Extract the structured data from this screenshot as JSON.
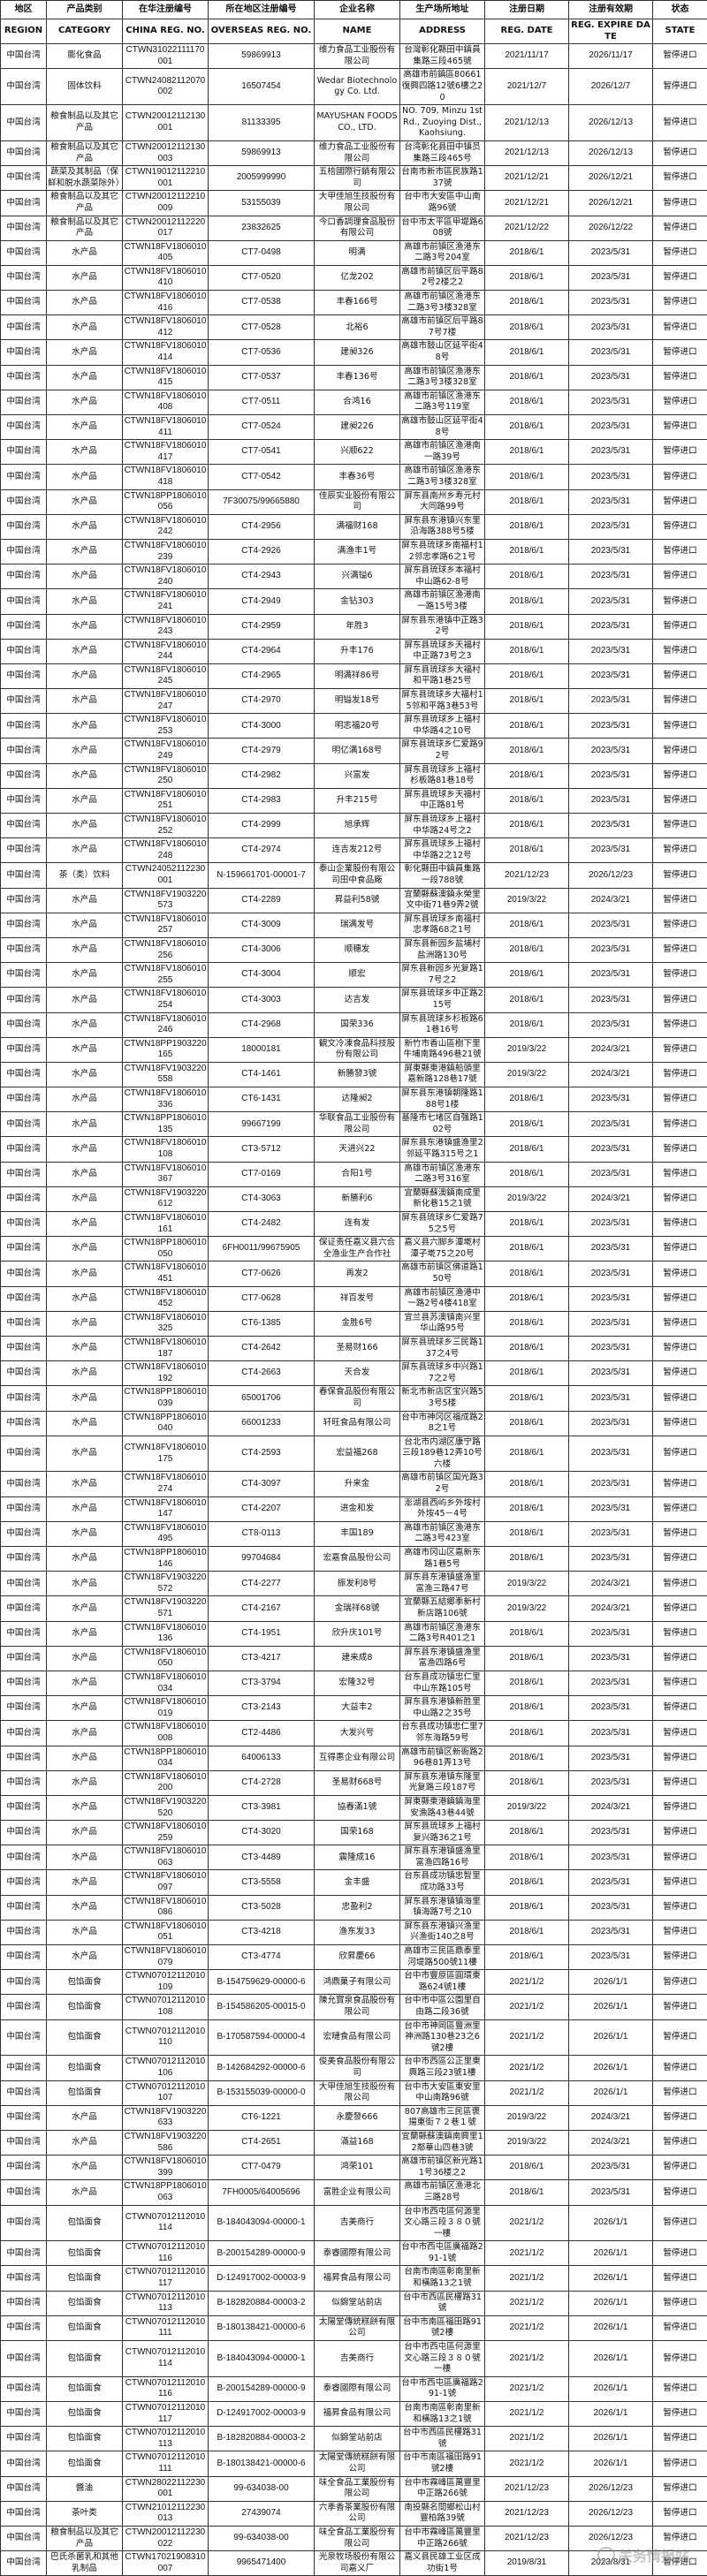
{
  "headers_cn": [
    "地区",
    "产品类别",
    "在华注册编号",
    "所在地区注册编号",
    "企业名称",
    "生产场所地址",
    "注册日期",
    "注册有效期",
    "状态"
  ],
  "headers_en": [
    "REGION",
    "CATEGORY",
    "CHINA REG. NO.",
    "OVERSEAS REG. NO.",
    "NAME",
    "ADDRESS",
    "REG. DATE",
    "REG. EXPIRE DATE",
    "STATE"
  ],
  "watermark": "关务情报站",
  "rows": [
    [
      "中国台湾",
      "膨化食品",
      "CTWN31022111170001",
      "59869913",
      "维力食品工业股份有限公司",
      "台灣彰化縣田中鎮員集路三段465號",
      "2021/11/17",
      "2026/11/17",
      "暂停进口"
    ],
    [
      "中国台湾",
      "固体饮料",
      "CTWN24082112070002",
      "16507454",
      "Wedar Biotechnology Co. Ltd.",
      "高雄市前鎮區80661復興四路12號6樓之20",
      "2021/12/7",
      "2026/12/7",
      "暂停进口"
    ],
    [
      "中国台湾",
      "粮食制品以及其它产品",
      "CTWN20012112130001",
      "81133395",
      "MAYUSHAN FOODS CO., LTD.",
      "NO. 709, Minzu 1st Rd., Zuoying Dist., Kaohsiung.",
      "2021/12/13",
      "2026/12/13",
      "暂停进口"
    ],
    [
      "中国台湾",
      "粮食制品以及其它产品",
      "CTWN20012112130003",
      "59869913",
      "维力食品工业股份有限公司",
      "台湾彰化县田中镇员集路三段465号",
      "2021/12/13",
      "2026/12/13",
      "暂停进口"
    ],
    [
      "中国台湾",
      "蔬菜及其制品（保鲜和脱水蔬菜除外）",
      "CTWN19012112210001",
      "2005999990",
      "五棓國際行銷有限公司",
      "台南市新市區民族路137號",
      "2021/12/21",
      "2026/12/21",
      "暂停进口"
    ],
    [
      "中国台湾",
      "粮食制品以及其它产品",
      "CTWN20012112210009",
      "53155039",
      "大甲佳旭生技股份有限公司",
      "台中市大安區中山南路96號",
      "2021/12/21",
      "2026/12/21",
      "暂停进口"
    ],
    [
      "中国台湾",
      "粮食制品以及其它产品",
      "CTWN20012112220017",
      "23832625",
      "今口香調理食品股份有限公司",
      "台中市太平區甲堤路608號",
      "2021/12/22",
      "2026/12/22",
      "暂停进口"
    ],
    [
      "中国台湾",
      "水产品",
      "CTWN18FV1806010405",
      "CT7-0498",
      "明满",
      "高雄市前镇区渔港东二路3号204室",
      "2018/6/1",
      "2023/5/31",
      "暂停进口"
    ],
    [
      "中国台湾",
      "水产品",
      "CTWN18FV1806010410",
      "CT7-0520",
      "亿龙202",
      "高雄市前镇区后平路82号2楼之2",
      "2018/6/1",
      "2023/5/31",
      "暂停进口"
    ],
    [
      "中国台湾",
      "水产品",
      "CTWN18FV1806010416",
      "CT7-0538",
      "丰春166号",
      "高雄市前镇区渔港东二路3号3楼328室",
      "2018/6/1",
      "2023/5/31",
      "暂停进口"
    ],
    [
      "中国台湾",
      "水产品",
      "CTWN18FV1806010412",
      "CT7-0528",
      "北裕6",
      "高雄市前镇区后平路87号7楼",
      "2018/6/1",
      "2023/5/31",
      "暂停进口"
    ],
    [
      "中国台湾",
      "水产品",
      "CTWN18FV1806010414",
      "CT7-0536",
      "建昶326",
      "高雄市鼓山区延平街48号",
      "2018/6/1",
      "2023/5/31",
      "暂停进口"
    ],
    [
      "中国台湾",
      "水产品",
      "CTWN18FV1806010415",
      "CT7-0537",
      "丰春136号",
      "高雄市前镇区渔港东二路3号3楼328室",
      "2018/6/1",
      "2023/5/31",
      "暂停进口"
    ],
    [
      "中国台湾",
      "水产品",
      "CTWN18FV1806010408",
      "CT7-0511",
      "合鸿16",
      "高雄市前镇区渔港东二路3号119室",
      "2018/6/1",
      "2023/5/31",
      "暂停进口"
    ],
    [
      "中国台湾",
      "水产品",
      "CTWN18FV1806010411",
      "CT7-0524",
      "建昶226",
      "高雄市鼓山区延平街48号",
      "2018/6/1",
      "2023/5/31",
      "暂停进口"
    ],
    [
      "中国台湾",
      "水产品",
      "CTWN18FV1806010417",
      "CT7-0541",
      "兴顺622",
      "高雄市前镇区渔港南一路39号",
      "2018/6/1",
      "2023/5/31",
      "暂停进口"
    ],
    [
      "中国台湾",
      "水产品",
      "CTWN18FV1806010418",
      "CT7-0542",
      "丰春36号",
      "高雄市前镇区渔港东二路3号3楼328室",
      "2018/6/1",
      "2023/5/31",
      "暂停进口"
    ],
    [
      "中国台湾",
      "水产品",
      "CTWN18PP1806010056",
      "7F30075/99665880",
      "佳辰实业股份有限公司",
      "屏东县南州乡寿元村大同路99号",
      "2018/6/1",
      "2023/5/31",
      "暂停进口"
    ],
    [
      "中国台湾",
      "水产品",
      "CTWN18FV1806010242",
      "CT4-2956",
      "满福财168",
      "屏东县东港镇兴东里沿海路388号5楼",
      "2018/6/1",
      "2023/5/31",
      "暂停进口"
    ],
    [
      "中国台湾",
      "水产品",
      "CTWN18FV1806010239",
      "CT4-2926",
      "满渔丰1号",
      "屏东县琉球乡南福村12邻忠孝路6之1号",
      "2018/6/1",
      "2023/5/31",
      "暂停进口"
    ],
    [
      "中国台湾",
      "水产品",
      "CTWN18FV1806010240",
      "CT4-2943",
      "兴满镒6",
      "屏东县琉球乡本福村中山路62-8号",
      "2018/6/1",
      "2023/5/31",
      "暂停进口"
    ],
    [
      "中国台湾",
      "水产品",
      "CTWN18FV1806010241",
      "CT4-2949",
      "金钻303",
      "高雄市前镇区渔港南一路15号3楼",
      "2018/6/1",
      "2023/5/31",
      "暂停进口"
    ],
    [
      "中国台湾",
      "水产品",
      "CTWN18FV1806010243",
      "CT4-2959",
      "年胜3",
      "屏东县东港镇中正路32号",
      "2018/6/1",
      "2023/5/31",
      "暂停进口"
    ],
    [
      "中国台湾",
      "水产品",
      "CTWN18FV1806010244",
      "CT4-2964",
      "升丰176",
      "屏东县琉球乡天福村中正路73号之3",
      "2018/6/1",
      "2023/5/31",
      "暂停进口"
    ],
    [
      "中国台湾",
      "水产品",
      "CTWN18FV1806010245",
      "CT4-2965",
      "明满祥86号",
      "屏东县琉球乡大福村和平路1巷25号",
      "2018/6/1",
      "2023/5/31",
      "暂停进口"
    ],
    [
      "中国台湾",
      "水产品",
      "CTWN18FV1806010247",
      "CT4-2970",
      "明镒发18号",
      "屏东县琉球乡大福村15邻和平路3巷53号",
      "2018/6/1",
      "2023/5/31",
      "暂停进口"
    ],
    [
      "中国台湾",
      "水产品",
      "CTWN18FV1806010253",
      "CT4-3000",
      "明志福20号",
      "屏东县琉球乡上福村中华路4之10号",
      "2018/6/1",
      "2023/5/31",
      "暂停进口"
    ],
    [
      "中国台湾",
      "水产品",
      "CTWN18FV1806010249",
      "CT4-2979",
      "明亿满168号",
      "屏东县琉球乡仁爱路92号",
      "2018/6/1",
      "2023/5/31",
      "暂停进口"
    ],
    [
      "中国台湾",
      "水产品",
      "CTWN18FV1806010250",
      "CT4-2982",
      "兴富发",
      "屏东县琉球乡上福村杉板路81巷18号",
      "2018/6/1",
      "2023/5/31",
      "暂停进口"
    ],
    [
      "中国台湾",
      "水产品",
      "CTWN18FV1806010251",
      "CT4-2983",
      "升丰215号",
      "屏东县琉球乡天福村中正路81号",
      "2018/6/1",
      "2023/5/31",
      "暂停进口"
    ],
    [
      "中国台湾",
      "水产品",
      "CTWN18FV1806010252",
      "CT4-2999",
      "旭承辉",
      "屏东县琉球乡上福村中华路24号之2",
      "2018/6/1",
      "2023/5/31",
      "暂停进口"
    ],
    [
      "中国台湾",
      "水产品",
      "CTWN18FV1806010248",
      "CT4-2974",
      "连吉发212号",
      "屏东县琉球乡上福村中华路2之12号",
      "2018/6/1",
      "2023/5/31",
      "暂停进口"
    ],
    [
      "中国台湾",
      "茶（类）饮料",
      "CTWN24052112230001",
      "N-159661701-00001-7",
      "泰山企業股份有限公司田中食品廠",
      "彰化縣田中鎮員集路一段788號",
      "2021/12/23",
      "2026/12/23",
      "暂停进口"
    ],
    [
      "中国台湾",
      "水产品",
      "CTWN18FV1903220573",
      "CT4-2289",
      "昇益利58號",
      "宜蘭縣蘇澳鎮永榮里文中街71巷9弄2號",
      "2019/3/22",
      "2024/3/21",
      "暂停进口"
    ],
    [
      "中国台湾",
      "水产品",
      "CTWN18FV1806010257",
      "CT4-3009",
      "瑞满发号",
      "屏东县琉球乡南福村忠孝路68之1号",
      "2018/6/1",
      "2023/5/31",
      "暂停进口"
    ],
    [
      "中国台湾",
      "水产品",
      "CTWN18FV1806010256",
      "CT4-3006",
      "顺穗发",
      "屏东县新园乡盐埔村盐洲路130号",
      "2018/6/1",
      "2023/5/31",
      "暂停进口"
    ],
    [
      "中国台湾",
      "水产品",
      "CTWN18FV1806010255",
      "CT4-3004",
      "顺宏",
      "屏东县新园乡光复路17号之2",
      "2018/6/1",
      "2023/5/31",
      "暂停进口"
    ],
    [
      "中国台湾",
      "水产品",
      "CTWN18FV1806010254",
      "CT4-3003",
      "达吉发",
      "屏东县琉球乡中正路215号",
      "2018/6/1",
      "2023/5/31",
      "暂停进口"
    ],
    [
      "中国台湾",
      "水产品",
      "CTWN18FV1806010246",
      "CT4-2968",
      "国荣336",
      "屏东县琉球乡杉板路61巷16号",
      "2018/6/1",
      "2023/5/31",
      "暂停进口"
    ],
    [
      "中国台湾",
      "水产品",
      "CTWN18PP1903220165",
      "18000181",
      "観文冷凍食品科技股份有限公司",
      "新竹市香山區樹下里牛埔南路496巷21號",
      "2019/3/22",
      "2024/3/21",
      "暂停进口"
    ],
    [
      "中国台湾",
      "水产品",
      "CTWN18FV1903220558",
      "CT4-1461",
      "新勝發3號",
      "屏東縣東港鎮船頭里嘉新路128巷17號",
      "2019/3/22",
      "2024/3/21",
      "暂停进口"
    ],
    [
      "中国台湾",
      "水产品",
      "CTWN18FV1806010336",
      "CT6-1431",
      "达隆昶2",
      "屏东县东港镇朝隆路188号1楼",
      "2018/6/1",
      "2023/5/31",
      "暂停进口"
    ],
    [
      "中国台湾",
      "水产品",
      "CTWN18PP1806010135",
      "99667199",
      "华联食品工业股份有限公司",
      "基隆市七堵区自强路102号",
      "2018/6/1",
      "2023/5/31",
      "暂停进口"
    ],
    [
      "中国台湾",
      "水产品",
      "CTWN18FV1806010108",
      "CT3-5712",
      "天进兴22",
      "屏东县东港镇盛渔里2邻延平路315号之1",
      "2018/6/1",
      "2023/5/31",
      "暂停进口"
    ],
    [
      "中国台湾",
      "水产品",
      "CTWN18FV1806010367",
      "CT7-0169",
      "合阳1号",
      "高雄市前镇区渔港东二路3号316室",
      "2018/6/1",
      "2023/5/31",
      "暂停进口"
    ],
    [
      "中国台湾",
      "水产品",
      "CTWN18FV1903220612",
      "CT4-3063",
      "新勝利6",
      "宜蘭縣蘇澳鎮南成里新化巷15之1號",
      "2019/3/22",
      "2024/3/21",
      "暂停进口"
    ],
    [
      "中国台湾",
      "水产品",
      "CTWN18FV1806010161",
      "CT4-2482",
      "连有发",
      "屏东县琉球乡仁爱路75之5号",
      "2018/6/1",
      "2023/5/31",
      "暂停进口"
    ],
    [
      "中国台湾",
      "水产品",
      "CTWN18PP1806010050",
      "6FH0011/99675905",
      "保证责任嘉义县六合全渔业生产合作社",
      "嘉义县六脚乡潭墘村潭子墘75之20号",
      "2018/6/1",
      "2023/5/31",
      "暂停进口"
    ],
    [
      "中国台湾",
      "水产品",
      "CTWN18FV1806010451",
      "CT7-0626",
      "再发2",
      "高雄市前镇区佛道路150号",
      "2018/6/1",
      "2023/5/31",
      "暂停进口"
    ],
    [
      "中国台湾",
      "水产品",
      "CTWN18FV1806010452",
      "CT7-0628",
      "祥百发号",
      "高雄市前镇区渔港中一路2号4楼418室",
      "2018/6/1",
      "2023/5/31",
      "暂停进口"
    ],
    [
      "中国台湾",
      "水产品",
      "CTWN18FV1806010325",
      "CT6-1385",
      "金胜6号",
      "宜兰县苏澳镇南兴里华山路95号",
      "2018/6/1",
      "2023/5/31",
      "暂停进口"
    ],
    [
      "中国台湾",
      "水产品",
      "CTWN18FV1806010187",
      "CT4-2642",
      "圣易财166",
      "屏东县琉球乡三民路137之4号",
      "2018/6/1",
      "2023/5/31",
      "暂停进口"
    ],
    [
      "中国台湾",
      "水产品",
      "CTWN18FV1806010192",
      "CT4-2663",
      "天合发",
      "屏东县琉球乡中兴路17之2号",
      "2018/6/1",
      "2023/5/31",
      "暂停进口"
    ],
    [
      "中国台湾",
      "水产品",
      "CTWN18PP1806010039",
      "65001706",
      "春保食品股份有限公司",
      "新北市新店区宝兴路53号5楼",
      "2018/6/1",
      "2023/5/31",
      "暂停进口"
    ],
    [
      "中国台湾",
      "水产品",
      "CTWN18PP1806010040",
      "66001233",
      "轩旺食品有限公司",
      "台中市神冈区福成路28之1号",
      "2018/6/1",
      "2023/5/31",
      "暂停进口"
    ],
    [
      "中国台湾",
      "水产品",
      "CTWN18FV1806010175",
      "CT4-2593",
      "宏益福268",
      "台北市内湖区康宁路三段189巷12弄10号六楼",
      "2018/6/1",
      "2023/5/31",
      "暂停进口"
    ],
    [
      "中国台湾",
      "水产品",
      "CTWN18FV1806010274",
      "CT4-3097",
      "升来金",
      "高雄市前镇区国光路32号",
      "2018/6/1",
      "2023/5/31",
      "暂停进口"
    ],
    [
      "中国台湾",
      "水产品",
      "CTWN18FV1806010147",
      "CT4-2207",
      "进金和发",
      "澎湖县西屿乡外垵村外垵45－4号",
      "2018/6/1",
      "2023/5/31",
      "暂停进口"
    ],
    [
      "中国台湾",
      "水产品",
      "CTWN18FV1806010495",
      "CT8-0113",
      "丰国189",
      "高雄市前镇区渔港东二路3号423室",
      "2018/6/1",
      "2023/5/31",
      "暂停进口"
    ],
    [
      "中国台湾",
      "水产品",
      "CTWN18PP1806010146",
      "99704684",
      "宏嘉食品股份公司",
      "高雄市冈山区嘉新东路1巷5号",
      "2018/6/1",
      "2023/5/31",
      "暂停进口"
    ],
    [
      "中国台湾",
      "水产品",
      "CTWN18FV1903220572",
      "CT4-2277",
      "振发利8号",
      "屏东县东港镇盛渔里富渔三路47号",
      "2019/3/22",
      "2024/3/21",
      "暂停进口"
    ],
    [
      "中国台湾",
      "水产品",
      "CTWN18FV1903220571",
      "CT4-2167",
      "金瑞祥68號",
      "宜蘭縣五結鄉季新村新店路106號",
      "2019/3/22",
      "2024/3/21",
      "暂停进口"
    ],
    [
      "中国台湾",
      "水产品",
      "CTWN18FV1806010136",
      "CT4-1951",
      "欣升庆101号",
      "高雄市前镇区渔港东二路3号R401之1",
      "2018/6/1",
      "2023/5/31",
      "暂停进口"
    ],
    [
      "中国台湾",
      "水产品",
      "CTWN18FV1806010050",
      "CT3-4217",
      "建来成8",
      "屏东县东港镇盛渔里富渔四路6号",
      "2018/6/1",
      "2023/5/31",
      "暂停进口"
    ],
    [
      "中国台湾",
      "水产品",
      "CTWN18FV1806010034",
      "CT3-3794",
      "宏隆32号",
      "台东县成功镇忠仁里中山东路105号",
      "2018/6/1",
      "2023/5/31",
      "暂停进口"
    ],
    [
      "中国台湾",
      "水产品",
      "CTWN18FV1806010019",
      "CT3-2143",
      "大益丰2",
      "屏东县东港镇新胜里中山路2之35号",
      "2018/6/1",
      "2023/5/31",
      "暂停进口"
    ],
    [
      "中国台湾",
      "水产品",
      "CTWN18FV1806010008",
      "CT2-4486",
      "大发兴号",
      "台东县成功镇忠仁里7邻东海路59号",
      "2018/6/1",
      "2023/5/31",
      "暂停进口"
    ],
    [
      "中国台湾",
      "水产品",
      "CTWN18PP1806010034",
      "64006133",
      "互得惠企业有限公司",
      "高雄市前镇区新衙路296巷81弄13号",
      "2018/6/1",
      "2023/5/31",
      "暂停进口"
    ],
    [
      "中国台湾",
      "水产品",
      "CTWN18FV1806010200",
      "CT4-2728",
      "圣易财668号",
      "屏东县东港镇东隆里光复路三段187号",
      "2018/6/1",
      "2023/5/31",
      "暂停进口"
    ],
    [
      "中国台湾",
      "水产品",
      "CTWN18FV1903220520",
      "CT3-3981",
      "協春滿1號",
      "屏東縣東港鎮鎮海里安漁路43巷44號",
      "2019/3/22",
      "2024/3/21",
      "暂停进口"
    ],
    [
      "中国台湾",
      "水产品",
      "CTWN18FV1806010259",
      "CT4-3020",
      "国荣168",
      "屏东县琉球乡上福村复兴路36之1号",
      "2018/6/1",
      "2023/5/31",
      "暂停进口"
    ],
    [
      "中国台湾",
      "水产品",
      "CTWN18FV1806010063",
      "CT3-4489",
      "震隆成16",
      "屏东县东港镇盛渔里富渔四路16号",
      "2018/6/1",
      "2023/5/31",
      "暂停进口"
    ],
    [
      "中国台湾",
      "水产品",
      "CTWN18FV1806010097",
      "CT3-5558",
      "金丰盛",
      "台东县成功镇忠智里成功路33号",
      "2018/6/1",
      "2023/5/31",
      "暂停进口"
    ],
    [
      "中国台湾",
      "水产品",
      "CTWN18FV1806010086",
      "CT3-5028",
      "忠盈利2",
      "屏东县东港镇镇海里镇海路7号之10",
      "2018/6/1",
      "2023/5/31",
      "暂停进口"
    ],
    [
      "中国台湾",
      "水产品",
      "CTWN18FV1806010051",
      "CT3-4218",
      "渔东发33",
      "屏东县东港镇兴渔里兴渔街140之8号",
      "2018/6/1",
      "2023/5/31",
      "暂停进口"
    ],
    [
      "中国台湾",
      "水产品",
      "CTWN18FV1806010079",
      "CT3-4774",
      "欣昇慶66",
      "高雄市三民區鼎泰里河堤路500號11樓",
      "2018/6/1",
      "2023/5/31",
      "暂停进口"
    ],
    [
      "中国台湾",
      "包馅面食",
      "CTWN07012112010109",
      "B-154759629-00000-6",
      "鸿鼎菓子有限公司",
      "台中市豐原區圓環東路624號1樓",
      "2021/1/2",
      "2026/1/1",
      "暂停进口"
    ],
    [
      "中国台湾",
      "包馅面食",
      "CTWN07012112010108",
      "B-154586205-00015-0",
      "陳允寳泉食品股份有限公司",
      "台中市中區公園里自由路二段36號",
      "2021/1/2",
      "2026/1/1",
      "暂停进口"
    ],
    [
      "中国台湾",
      "包馅面食",
      "CTWN07012112010110",
      "B-170587594-00000-4",
      "宏嗹食品有限公司",
      "台中市神岡區豐洲里神洲路130巷23之6號2樓",
      "2021/1/2",
      "2026/1/1",
      "暂停进口"
    ],
    [
      "中国台湾",
      "包馅面食",
      "CTWN07012112010106",
      "B-142684292-00000-6",
      "俊美食品股份有限公司",
      "台中市西區公正里東興路三段23號1樓",
      "2021/1/2",
      "2026/1/1",
      "暂停进口"
    ],
    [
      "中国台湾",
      "包馅面食",
      "CTWN07012112010107",
      "B-153155039-00000-0",
      "大甲佳旭生技股份有限公司",
      "台中市大安區東安里中山南路96號",
      "2021/1/2",
      "2026/1/1",
      "暂停进口"
    ],
    [
      "中国台湾",
      "水产品",
      "CTWN18FV1903220633",
      "CT6-1221",
      "永慶發666",
      "807高雄市三民區褒揚東街７２巷１號",
      "2019/3/22",
      "2024/3/21",
      "暂停进口"
    ],
    [
      "中国台湾",
      "水产品",
      "CTWN18FV1903220586",
      "CT4-2651",
      "滿益168",
      "宜蘭縣蘇澳鎮南興里12鄰華山四巷3號",
      "2019/3/22",
      "2024/3/21",
      "暂停进口"
    ],
    [
      "中国台湾",
      "水产品",
      "CTWN18FV1806010399",
      "CT7-0479",
      "鸿荣101",
      "高雄市前镇区新光路11号36楼之2",
      "2018/6/1",
      "2023/5/31",
      "暂停进口"
    ],
    [
      "中国台湾",
      "水产品",
      "CTWN18PP1806010063",
      "7FH0005/64005696",
      "富胜企业有限公司",
      "高雄市前镇区渔港北三路28号",
      "2018/6/1",
      "2023/5/31",
      "暂停进口"
    ],
    [
      "中国台湾",
      "包馅面食",
      "CTWN07012112010114",
      "B-184043094-00000-1",
      "吉美商行",
      "台中市西屯區何源里文心路三段３８０號一樓",
      "2021/1/2",
      "2026/1/1",
      "暂停进口"
    ],
    [
      "中国台湾",
      "包馅面食",
      "CTWN07012112010116",
      "B-200154289-00000-9",
      "泰睿國際有限公司",
      "台中市西屯區廣福路291-1號",
      "2021/1/2",
      "2026/1/1",
      "暂停进口"
    ],
    [
      "中国台湾",
      "包馅面食",
      "CTWN07012112010117",
      "D-124917002-00003-9",
      "福昇食品有限公司",
      "台南市南區彰南里新和橫路13之1號",
      "2021/1/2",
      "2026/1/1",
      "暂停进口"
    ],
    [
      "中国台湾",
      "包馅面食",
      "CTWN07012112010113",
      "B-182820884-00003-2",
      "似錦堂站前店",
      "台中市西區民權路31號",
      "2021/1/2",
      "2026/1/1",
      "暂停进口"
    ],
    [
      "中国台湾",
      "包馅面食",
      "CTWN07012112010111",
      "B-180138421-00000-6",
      "太陽堂傳統糕餅有限公司",
      "台中市南區福田路91號2樓",
      "2021/1/2",
      "2026/1/1",
      "暂停进口"
    ],
    [
      "中国台湾",
      "包馅面食",
      "CTWN07012112010114",
      "B-184043094-00000-1",
      "吉美商行",
      "台中市西屯區何源里文心路三段３８０號一樓",
      "2021/1/2",
      "2026/1/1",
      "暂停进口"
    ],
    [
      "中国台湾",
      "包馅面食",
      "CTWN07012112010116",
      "B-200154289-00000-9",
      "泰睿國際有限公司",
      "台中市西屯區廣福路291-1號",
      "2021/1/2",
      "2026/1/1",
      "暂停进口"
    ],
    [
      "中国台湾",
      "包馅面食",
      "CTWN07012112010117",
      "D-124917002-00003-9",
      "福昇食品有限公司",
      "台南市南區彰南里新和橫路13之1號",
      "2021/1/2",
      "2026/1/1",
      "暂停进口"
    ],
    [
      "中国台湾",
      "包馅面食",
      "CTWN07012112010113",
      "B-182820884-00003-2",
      "似錦堂站前店",
      "台中市西區民權路31號",
      "2021/1/2",
      "2026/1/1",
      "暂停进口"
    ],
    [
      "中国台湾",
      "包馅面食",
      "CTWN07012112010111",
      "B-180138421-00000-6",
      "太陽堂傳統糕餅有限公司",
      "台中市南區福田路91號2樓",
      "2021/1/2",
      "2026/1/1",
      "暂停进口"
    ],
    [
      "中国台湾",
      "醬油",
      "CTWN28022112230001",
      "99-634038-00",
      "味全食品工業股份有限公司",
      "台中市霧峰區萬豐里中正路266號",
      "2021/12/23",
      "2026/12/23",
      "暂停进口"
    ],
    [
      "中国台湾",
      "茶叶类",
      "CTWN21012112230013",
      "27439074",
      "六季香茶業股份有限公司",
      "南投縣名間鄉松山村豐柏路39號",
      "2021/12/23",
      "2026/12/23",
      "暂停进口"
    ],
    [
      "中国台湾",
      "粮食制品以及其它产品",
      "CTWN20012112230022",
      "99-634038-00",
      "味全食品工業股份有限公司",
      "台中市霧峰區萬豐里中正路266號",
      "2021/12/23",
      "2026/12/23",
      "暂停进口"
    ],
    [
      "中国台湾",
      "巴氏杀菌乳和其他乳制品",
      "CTWN17021908310007",
      "9965471400",
      "光泉牧场股份有限公司嘉义厂",
      "嘉义县民雄工业区成功街1号",
      "2019/8/31",
      "2023/8/31",
      "暂停进口"
    ]
  ]
}
